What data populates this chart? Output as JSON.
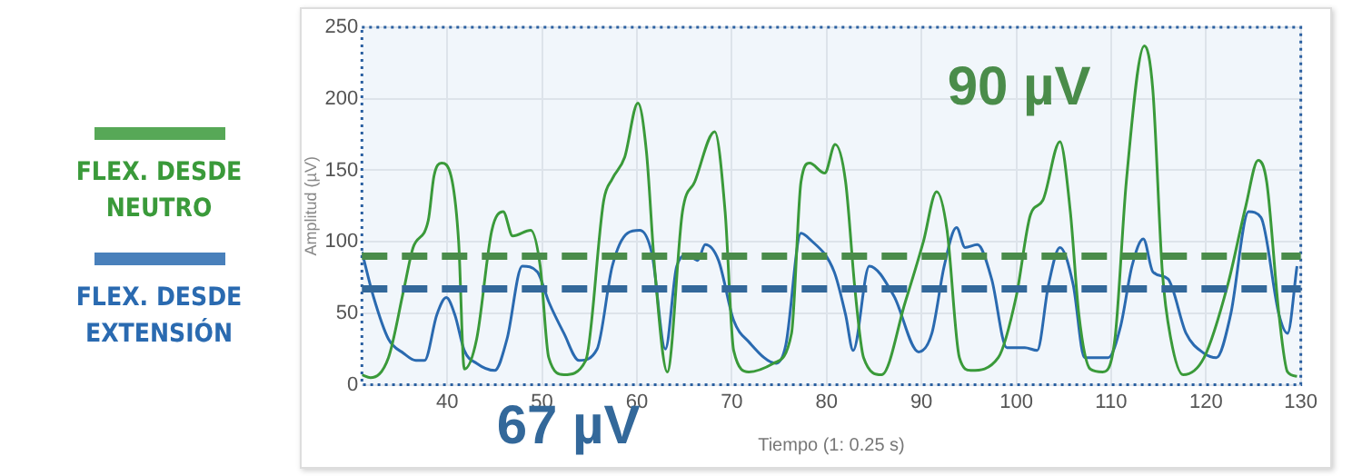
{
  "chart_data": {
    "type": "line",
    "xlabel": "Tiempo (1: 0.25 s)",
    "ylabel": "Amplitud (µV)",
    "xlim": [
      31,
      130
    ],
    "xticks": [
      40,
      50,
      60,
      70,
      80,
      90,
      100,
      110,
      120,
      130
    ],
    "ylim": [
      0,
      250
    ],
    "yticks": [
      0,
      50,
      100,
      150,
      200,
      250
    ],
    "grid": true,
    "legend": "left",
    "marker": "none",
    "line_style": "solid",
    "series": [
      {
        "name": "FLEX. DESDE NEUTRO",
        "color": "#3a9a3a",
        "x": [
          31,
          31.9,
          33.8,
          35.4,
          36.4,
          38,
          38.6,
          39.4,
          40.4,
          41.2,
          41.8,
          43.1,
          44.7,
          45.9,
          46.9,
          48.8,
          49.8,
          50.7,
          52.3,
          54.6,
          56.5,
          57.4,
          58.7,
          60.1,
          61,
          61.9,
          63.2,
          64.8,
          66.1,
          68.2,
          69.3,
          70.2,
          71.8,
          74.4,
          76.3,
          77.3,
          78.2,
          79.8,
          80.9,
          82,
          83,
          83.9,
          85.8,
          88.3,
          90.2,
          91.6,
          92.7,
          94,
          95.2,
          98.1,
          100,
          101.5,
          102.8,
          104.6,
          105.7,
          106.6,
          107.8,
          109.1,
          110.4,
          111.6,
          113.5,
          114.4,
          115.4,
          116.3,
          117.6,
          119.8,
          122.3,
          124.2,
          125.5,
          126.4,
          127.7,
          128.6,
          129.6
        ],
        "values": [
          7,
          5,
          19,
          66,
          96,
          115,
          146,
          155,
          146,
          100,
          11,
          32,
          108,
          121,
          104,
          108,
          83,
          19,
          7,
          17,
          129,
          144,
          159,
          197,
          163,
          79,
          9,
          121,
          142,
          177,
          121,
          24,
          9,
          15,
          36,
          142,
          155,
          148,
          168,
          142,
          66,
          19,
          7,
          58,
          100,
          135,
          108,
          19,
          10,
          19,
          62,
          119,
          129,
          170,
          121,
          49,
          11,
          9,
          32,
          142,
          237,
          206,
          79,
          32,
          7,
          19,
          70,
          125,
          157,
          142,
          49,
          9,
          6
        ]
      },
      {
        "name": "FLEX. DESDE EXTENSIÓN",
        "color": "#2a6ab0",
        "x": [
          31,
          32.2,
          33.8,
          35.4,
          36.7,
          37.6,
          38.9,
          39.9,
          40.8,
          41.8,
          43.1,
          45,
          46.3,
          47.9,
          49.5,
          50.7,
          52.3,
          53.9,
          55.8,
          57.4,
          59,
          60.3,
          61.6,
          63,
          64.2,
          65.4,
          66.4,
          67.2,
          68.6,
          70.2,
          71.8,
          74.7,
          75.7,
          77.3,
          78.2,
          80.8,
          82,
          82.8,
          84.5,
          87.1,
          89.7,
          91.1,
          92.4,
          93.7,
          94.6,
          95.9,
          97.4,
          99,
          100.9,
          102.2,
          103.4,
          104.6,
          106,
          107.2,
          109.7,
          111,
          112.2,
          113.4,
          114.4,
          116,
          117.9,
          119.8,
          121.1,
          122.6,
          124.5,
          125.8,
          127.7,
          128.6,
          129.6
        ],
        "values": [
          93,
          62,
          32,
          22,
          17,
          17,
          49,
          61,
          49,
          24,
          15,
          10,
          32,
          83,
          79,
          58,
          36,
          17,
          25,
          83,
          106,
          108,
          91,
          25,
          83,
          91,
          87,
          98,
          87,
          45,
          30,
          15,
          28,
          106,
          102,
          79,
          49,
          24,
          83,
          62,
          23,
          36,
          83,
          110,
          96,
          98,
          74,
          26,
          26,
          24,
          70,
          96,
          70,
          19,
          19,
          41,
          83,
          102,
          79,
          74,
          36,
          22,
          19,
          49,
          121,
          117,
          49,
          36,
          83
        ]
      }
    ],
    "ref_lines": [
      {
        "axis": "y",
        "value": 90,
        "label": "90 µV",
        "color": "#4a8c4a",
        "line_style": "dashed"
      },
      {
        "axis": "y",
        "value": 67,
        "label": "67 µV",
        "color": "#33689a",
        "line_style": "dashed"
      }
    ]
  }
}
